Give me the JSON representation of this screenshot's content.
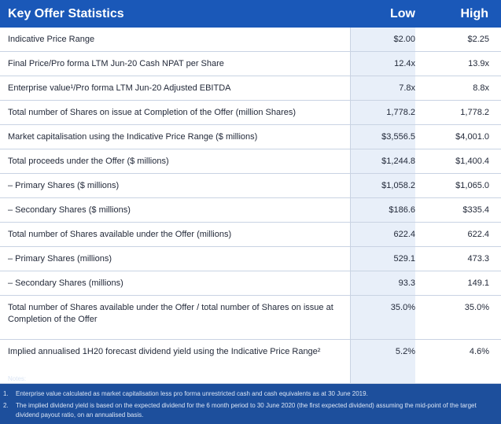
{
  "table": {
    "title": "Key Offer Statistics",
    "col_low": "Low",
    "col_high": "High",
    "rows": [
      {
        "label": "Indicative Price Range",
        "low": "$2.00",
        "high": "$2.25"
      },
      {
        "label": "Final Price/Pro forma LTM Jun-20 Cash NPAT per Share",
        "low": "12.4x",
        "high": "13.9x"
      },
      {
        "label": "Enterprise value¹/Pro forma LTM Jun-20 Adjusted EBITDA",
        "low": "7.8x",
        "high": "8.8x"
      },
      {
        "label": "Total number of Shares on issue at Completion of the Offer (million Shares)",
        "low": "1,778.2",
        "high": "1,778.2"
      },
      {
        "label": "Market capitalisation using the Indicative Price Range ($ millions)",
        "low": "$3,556.5",
        "high": "$4,001.0"
      },
      {
        "label": "Total proceeds under the Offer ($ millions)",
        "low": "$1,244.8",
        "high": "$1,400.4"
      },
      {
        "label": "– Primary Shares ($ millions)",
        "low": "$1,058.2",
        "high": "$1,065.0"
      },
      {
        "label": "– Secondary Shares ($ millions)",
        "low": "$186.6",
        "high": "$335.4"
      },
      {
        "label": "Total number of Shares available under the Offer (millions)",
        "low": "622.4",
        "high": "622.4"
      },
      {
        "label": "– Primary Shares (millions)",
        "low": "529.1",
        "high": "473.3"
      },
      {
        "label": "– Secondary Shares (millions)",
        "low": "93.3",
        "high": "149.1"
      },
      {
        "label": "Total number of Shares available under the Offer / total number of Shares on issue at Completion of the Offer",
        "low": "35.0%",
        "high": "35.0%"
      },
      {
        "label": "Implied annualised 1H20 forecast dividend yield using the Indicative Price Range²",
        "low": "5.2%",
        "high": "4.6%"
      }
    ]
  },
  "notes": {
    "heading": "Notes:",
    "items": [
      {
        "num": "1.",
        "text": "Enterprise value calculated as market capitalisation less pro forma unrestricted cash and cash equivalents as at 30 June 2019."
      },
      {
        "num": "2.",
        "text": "The implied dividend yield is based on the expected dividend for the 6 month period to 30 June 2020 (the first expected dividend) assuming the mid-point of the target dividend payout ratio, on an annualised basis."
      }
    ]
  },
  "colors": {
    "header_blue": "#1a58b8",
    "background_blue": "#1d4f9c",
    "low_column_tint": "#e8eff9",
    "row_divider": "#c9d3e3"
  }
}
